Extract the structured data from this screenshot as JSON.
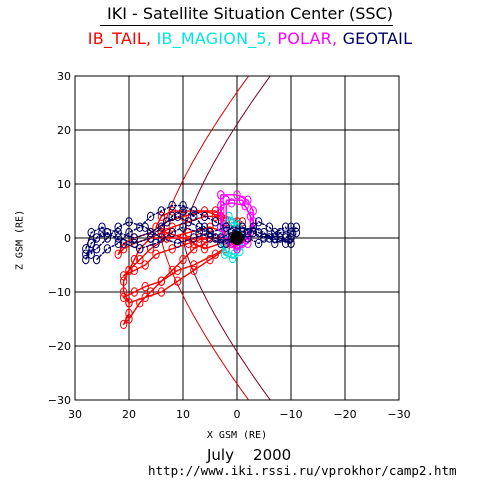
{
  "title": "IKI - Satellite Situation Center (SSC)",
  "legend": [
    {
      "label": "IB_TAIL",
      "color": "#ff0000"
    },
    {
      "label": "IB_MAGION_5",
      "color": "#00e5e5"
    },
    {
      "label": "POLAR",
      "color": "#ff00ff"
    },
    {
      "label": "GEOTAIL",
      "color": "#000066"
    }
  ],
  "footer": {
    "date": "July    2000",
    "url": "http://www.iki.rssi.ru/vprokhor/camp2.htm"
  },
  "chart_data": {
    "type": "line",
    "title": "IKI - Satellite Situation Center (SSC)",
    "xlabel": "X GSM (RE)",
    "ylabel": "Z GSM (RE)",
    "xlim": [
      30,
      -30
    ],
    "ylim": [
      -30,
      30
    ],
    "xticks": [
      30,
      20,
      10,
      0,
      -10,
      -20,
      -30
    ],
    "yticks": [
      30,
      20,
      10,
      0,
      -10,
      -20,
      -30
    ],
    "x_tick_labels": [
      "30",
      "20",
      "10",
      "0",
      "−10",
      "−20",
      "−30"
    ],
    "y_tick_labels": [
      "30",
      "20",
      "10",
      "0",
      "−10",
      "−20",
      "−30"
    ],
    "grid": true,
    "legend_position": "top",
    "earth": {
      "x": 0,
      "z": 0,
      "radius_re": 1,
      "color": "#000000"
    },
    "boundaries": [
      {
        "name": "bow shock",
        "color": "#dd0000",
        "x0": 14,
        "flare": 0.62
      },
      {
        "name": "magnetopause",
        "color": "#7a0033",
        "x0": 10,
        "flare": 0.62
      }
    ],
    "series": [
      {
        "name": "IB_TAIL",
        "color": "#ff0000",
        "segments": [
          [
            [
              -1,
              1
            ],
            [
              2,
              3
            ],
            [
              4,
              4
            ],
            [
              6,
              4
            ],
            [
              9,
              3
            ],
            [
              12,
              2
            ],
            [
              14,
              1
            ],
            [
              16,
              0
            ],
            [
              18,
              -2
            ],
            [
              19,
              -4
            ],
            [
              20,
              -6
            ],
            [
              21,
              -8
            ],
            [
              21,
              -10
            ],
            [
              20,
              -12
            ],
            [
              20,
              -14
            ],
            [
              21,
              -16
            ],
            [
              20,
              -15
            ],
            [
              18,
              -12
            ],
            [
              16,
              -10
            ],
            [
              14,
              -8
            ],
            [
              12,
              -6
            ],
            [
              10,
              -4
            ],
            [
              8,
              -2
            ],
            [
              6,
              -1
            ],
            [
              4,
              0
            ],
            [
              2,
              0
            ],
            [
              0,
              -2
            ]
          ],
          [
            [
              -1,
              3
            ],
            [
              3,
              4
            ],
            [
              6,
              5
            ],
            [
              10,
              4
            ],
            [
              13,
              3
            ],
            [
              16,
              1
            ],
            [
              19,
              0
            ],
            [
              21,
              -1
            ],
            [
              22,
              -3
            ],
            [
              21,
              -2
            ],
            [
              19,
              -1
            ],
            [
              16,
              0
            ],
            [
              13,
              0
            ],
            [
              10,
              0
            ],
            [
              7,
              0
            ],
            [
              4,
              0
            ],
            [
              2,
              1
            ],
            [
              0,
              1
            ]
          ],
          [
            [
              0,
              3
            ],
            [
              4,
              5
            ],
            [
              8,
              5
            ],
            [
              12,
              5
            ],
            [
              14,
              4
            ],
            [
              15,
              2
            ],
            [
              13,
              1
            ],
            [
              10,
              0
            ],
            [
              8,
              -1
            ],
            [
              6,
              -2
            ],
            [
              3,
              -1
            ],
            [
              1,
              0
            ]
          ],
          [
            [
              2,
              1
            ],
            [
              5,
              2
            ],
            [
              9,
              1
            ],
            [
              13,
              0
            ],
            [
              16,
              -2
            ],
            [
              18,
              -4
            ],
            [
              20,
              -6
            ],
            [
              21,
              -7
            ],
            [
              19,
              -6
            ],
            [
              17,
              -5
            ],
            [
              15,
              -3
            ],
            [
              12,
              -2
            ],
            [
              9,
              -1
            ],
            [
              6,
              0
            ],
            [
              3,
              0
            ]
          ],
          [
            [
              1,
              -1
            ],
            [
              4,
              -3
            ],
            [
              8,
              -5
            ],
            [
              11,
              -6
            ],
            [
              14,
              -8
            ],
            [
              17,
              -9
            ],
            [
              19,
              -10
            ],
            [
              21,
              -11
            ],
            [
              20,
              -12
            ],
            [
              17,
              -11
            ],
            [
              14,
              -10
            ],
            [
              11,
              -8
            ],
            [
              8,
              -6
            ],
            [
              5,
              -4
            ],
            [
              2,
              -2
            ]
          ]
        ]
      },
      {
        "name": "IB_MAGION_5",
        "color": "#00e5e5",
        "segments": [
          [
            [
              1,
              3
            ],
            [
              2,
              1
            ],
            [
              2.5,
              -1
            ],
            [
              2,
              -2.5
            ],
            [
              0.5,
              -3
            ],
            [
              -0.5,
              -1.5
            ],
            [
              -0.8,
              0.5
            ],
            [
              0,
              2
            ],
            [
              1,
              3
            ]
          ],
          [
            [
              1.5,
              4
            ],
            [
              3,
              2
            ],
            [
              3,
              -1
            ],
            [
              2.3,
              -3
            ],
            [
              0.8,
              -3.8
            ],
            [
              -0.5,
              -2.5
            ],
            [
              -1,
              0
            ],
            [
              -0.2,
              2.5
            ],
            [
              1.5,
              4
            ]
          ]
        ]
      },
      {
        "name": "POLAR",
        "color": "#ff00ff",
        "segments": [
          [
            [
              3,
              8
            ],
            [
              0,
              8
            ],
            [
              -2,
              7
            ],
            [
              -3,
              5
            ],
            [
              -3,
              2
            ],
            [
              -2,
              -1
            ],
            [
              0,
              -2
            ],
            [
              2,
              -1
            ],
            [
              3,
              2
            ],
            [
              3,
              5
            ],
            [
              3,
              8
            ]
          ],
          [
            [
              2,
              7
            ],
            [
              -1,
              7
            ],
            [
              -2.5,
              4
            ],
            [
              -2.5,
              1
            ],
            [
              -1,
              -1
            ],
            [
              1,
              -1
            ],
            [
              2,
              2
            ],
            [
              2,
              7
            ]
          ],
          [
            [
              3,
              6
            ],
            [
              1,
              6.5
            ],
            [
              -1.5,
              6
            ],
            [
              -3,
              3
            ],
            [
              -2,
              0
            ],
            [
              0,
              -1.5
            ],
            [
              2.5,
              0
            ],
            [
              3,
              6
            ]
          ]
        ]
      },
      {
        "name": "GEOTAIL",
        "color": "#000066",
        "segments": [
          [
            [
              28,
              -4
            ],
            [
              27,
              -1
            ],
            [
              25,
              1
            ],
            [
              22,
              0
            ],
            [
              19,
              -1
            ],
            [
              16,
              0
            ],
            [
              14,
              2
            ],
            [
              12,
              4
            ],
            [
              10,
              5
            ],
            [
              8,
              4
            ],
            [
              6,
              2
            ],
            [
              4,
              0
            ],
            [
              2,
              -1
            ],
            [
              0,
              0
            ],
            [
              -2,
              1
            ],
            [
              -4,
              3
            ],
            [
              -6,
              2
            ],
            [
              -8,
              0
            ],
            [
              -10,
              -1
            ],
            [
              -11,
              1
            ],
            [
              -10,
              2
            ]
          ],
          [
            [
              27,
              -3
            ],
            [
              26,
              0
            ],
            [
              24,
              1
            ],
            [
              21,
              -1
            ],
            [
              18,
              -2
            ],
            [
              15,
              -1
            ],
            [
              12,
              1
            ],
            [
              10,
              2
            ],
            [
              7,
              1
            ],
            [
              5,
              0
            ],
            [
              3,
              -1
            ],
            [
              1,
              0
            ],
            [
              -1,
              1
            ],
            [
              -3,
              2
            ],
            [
              -5,
              1
            ],
            [
              -7,
              -1
            ],
            [
              -9,
              0
            ],
            [
              -11,
              2
            ]
          ],
          [
            [
              28,
              -2
            ],
            [
              27,
              1
            ],
            [
              25,
              2
            ],
            [
              22,
              1
            ],
            [
              19,
              0
            ],
            [
              16,
              1
            ],
            [
              13,
              3
            ],
            [
              11,
              4
            ],
            [
              9,
              3
            ],
            [
              7,
              2
            ],
            [
              5,
              1
            ],
            [
              3,
              0
            ],
            [
              1,
              1
            ],
            [
              -1,
              2
            ],
            [
              -3,
              1
            ],
            [
              -5,
              0
            ],
            [
              -7,
              1
            ],
            [
              -9,
              2
            ],
            [
              -10,
              0
            ],
            [
              -9,
              -1
            ]
          ],
          [
            [
              26,
              -4
            ],
            [
              24,
              -2
            ],
            [
              22,
              -1
            ],
            [
              20,
              1
            ],
            [
              18,
              2
            ],
            [
              16,
              4
            ],
            [
              14,
              5
            ],
            [
              12,
              6
            ],
            [
              10,
              6
            ],
            [
              8,
              5
            ],
            [
              6,
              4
            ],
            [
              4,
              3
            ],
            [
              2,
              2
            ],
            [
              0,
              1
            ],
            [
              -2,
              0
            ],
            [
              -4,
              -1
            ],
            [
              -6,
              0
            ],
            [
              -8,
              1
            ],
            [
              -10,
              1
            ]
          ],
          [
            [
              28,
              -3
            ],
            [
              26,
              -2
            ],
            [
              24,
              0
            ],
            [
              22,
              2
            ],
            [
              20,
              3
            ],
            [
              17,
              2
            ],
            [
              14,
              0
            ],
            [
              11,
              -1
            ],
            [
              8,
              0
            ],
            [
              5,
              1
            ],
            [
              2,
              2
            ],
            [
              -1,
              2
            ],
            [
              -4,
              1
            ],
            [
              -7,
              0
            ],
            [
              -10,
              -1
            ]
          ]
        ]
      }
    ]
  }
}
